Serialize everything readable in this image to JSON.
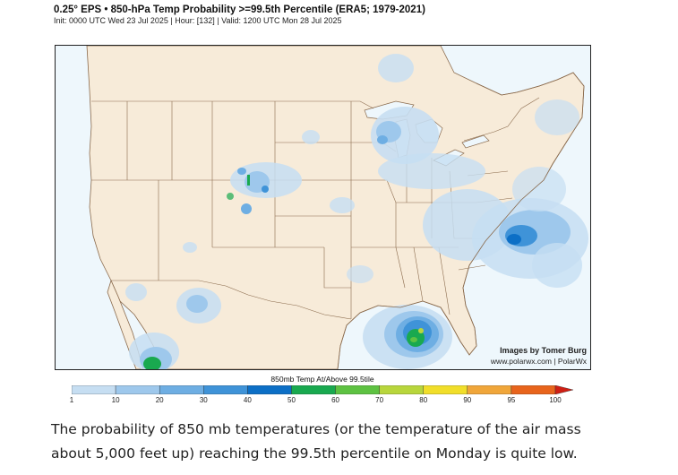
{
  "header": {
    "title": "0.25° EPS • 850-hPa Temp Probability >=99.5th Percentile (ERA5; 1979-2021)",
    "subtitle": "Init: 0000 UTC Wed 23 Jul 2025 | Hour: [132] | Valid: 1200 UTC Mon 28 Jul 2025"
  },
  "map": {
    "credit_line1": "Images by Tomer Burg",
    "credit_line2": "www.polarwx.com | PolarWx",
    "land_color": "#f7ebd9",
    "water_color": "#eef7fc",
    "boundary_color": "#8a6a4c"
  },
  "legend": {
    "title": "850mb Temp At/Above 99.5tile",
    "ticks": [
      "1",
      "10",
      "20",
      "30",
      "40",
      "50",
      "60",
      "70",
      "80",
      "90",
      "95",
      "100"
    ],
    "colors": [
      "#c6def2",
      "#9ec8ec",
      "#6eaee3",
      "#3f93d8",
      "#0c6fc6",
      "#19a94f",
      "#5ec242",
      "#b8d63c",
      "#f1de2a",
      "#f0a63a",
      "#e8641c",
      "#cf1f14"
    ]
  },
  "caption": "The probability of 850 mb temperatures (or the temperature of the air mass about 5,000 feet up) reaching the 99.5th percentile on Monday is quite low."
}
